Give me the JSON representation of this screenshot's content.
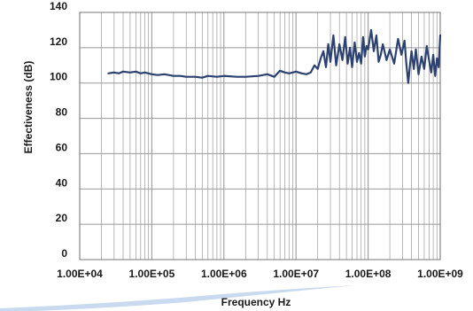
{
  "colors": {
    "series_line": "#2b4170",
    "grid": "#9a9a9a",
    "plot_border": "#777777",
    "swoosh": "#c9daf0"
  },
  "chart_data": {
    "type": "line",
    "xscale": "log",
    "xlim": [
      10000,
      1000000000
    ],
    "ylim": [
      0,
      140
    ],
    "xlabel": "Frequency Hz",
    "ylabel": "Effectiveness (dB)",
    "x_tick_labels": [
      "1.00E+04",
      "1.00E+05",
      "1.00E+06",
      "1.00E+07",
      "1.00E+08",
      "1.00E+09"
    ],
    "y_tick_labels": [
      "0",
      "20",
      "40",
      "60",
      "80",
      "100",
      "120",
      "140"
    ],
    "grid": true,
    "series": [
      {
        "x": [
          25000,
          30000,
          35000,
          40000,
          50000,
          60000,
          70000,
          80000,
          100000,
          120000,
          150000,
          200000,
          250000,
          300000,
          400000,
          500000,
          600000,
          800000,
          1000000,
          1500000,
          2000000,
          3000000,
          4000000,
          5000000,
          6000000,
          7000000,
          8000000,
          9000000,
          10000000,
          12000000,
          14000000,
          16000000,
          18000000,
          20000000,
          22000000,
          24000000,
          26000000,
          28000000,
          30000000,
          33000000,
          36000000,
          40000000,
          44000000,
          48000000,
          52000000,
          56000000,
          60000000,
          65000000,
          70000000,
          75000000,
          80000000,
          85000000,
          90000000,
          95000000,
          100000000,
          110000000,
          120000000,
          130000000,
          140000000,
          150000000,
          160000000,
          180000000,
          200000000,
          230000000,
          260000000,
          290000000,
          320000000,
          340000000,
          360000000,
          380000000,
          400000000,
          430000000,
          460000000,
          500000000,
          550000000,
          600000000,
          650000000,
          700000000,
          750000000,
          800000000,
          850000000,
          900000000,
          950000000,
          1000000000
        ],
        "y": [
          105.5,
          106,
          105.5,
          106.5,
          106,
          106.5,
          105.5,
          106,
          105,
          104.5,
          105,
          104,
          104,
          103.5,
          103.5,
          103,
          104,
          103.5,
          104,
          103.5,
          103.5,
          104,
          105,
          103.5,
          107,
          106,
          105.5,
          106,
          106.5,
          105.5,
          105,
          106,
          110,
          108,
          114,
          118,
          109,
          122,
          112,
          127,
          110,
          122,
          113,
          126,
          111,
          120,
          109,
          123,
          112,
          117,
          111,
          126,
          115,
          121,
          119,
          130,
          118,
          127,
          112,
          116,
          122,
          113,
          119,
          111,
          125,
          116,
          124,
          110,
          100,
          110,
          118,
          108,
          119,
          105,
          115,
          108,
          121,
          113,
          106,
          116,
          104,
          114,
          109,
          127
        ]
      }
    ]
  }
}
